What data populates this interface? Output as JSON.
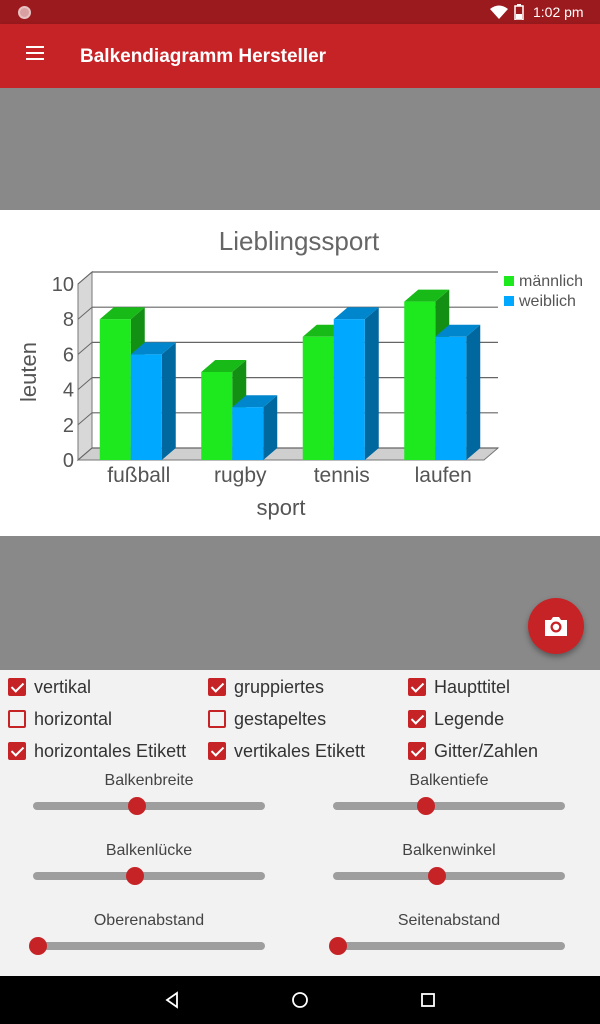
{
  "status_bar": {
    "time": "1:02 pm",
    "icons": [
      "notification-dot-icon",
      "wifi-icon",
      "battery-icon"
    ]
  },
  "app_bar": {
    "title": "Balkendiagramm Hersteller",
    "menu_icon": "hamburger-menu-icon"
  },
  "colors": {
    "primary": "#c62327",
    "status": "#9b1a1d",
    "male": "#1ee81e",
    "female": "#00a8ff",
    "gray_bg": "#898989"
  },
  "chart_data": {
    "type": "bar",
    "title": "Lieblingssport",
    "xlabel": "sport",
    "ylabel": "leuten",
    "categories": [
      "fußball",
      "rugby",
      "tennis",
      "laufen"
    ],
    "series": [
      {
        "name": "männlich",
        "values": [
          8,
          5,
          7,
          9
        ]
      },
      {
        "name": "weiblich",
        "values": [
          6,
          3,
          8,
          7
        ]
      }
    ],
    "ylim": [
      0,
      10
    ],
    "yticks": [
      "0",
      "2",
      "4",
      "6",
      "8",
      "10"
    ],
    "grid": true,
    "legend": "top-right",
    "style": "3d"
  },
  "checkboxes": [
    {
      "label": "vertikal",
      "checked": true
    },
    {
      "label": "gruppiertes",
      "checked": true
    },
    {
      "label": "Haupttitel",
      "checked": true
    },
    {
      "label": "horizontal",
      "checked": false
    },
    {
      "label": "gestapeltes",
      "checked": false
    },
    {
      "label": "Legende",
      "checked": true
    },
    {
      "label": "horizontales Etikett",
      "checked": true
    },
    {
      "label": "vertikales Etikett",
      "checked": true
    },
    {
      "label": "Gitter/Zahlen",
      "checked": true
    }
  ],
  "sliders": [
    {
      "label": "Balkenbreite",
      "value": 0.45
    },
    {
      "label": "Balkentiefe",
      "value": 0.4
    },
    {
      "label": "Balkenlücke",
      "value": 0.44
    },
    {
      "label": "Balkenwinkel",
      "value": 0.45
    },
    {
      "label": "Oberenabstand",
      "value": 0.02
    },
    {
      "label": "Seitenabstand",
      "value": 0.02
    }
  ],
  "fab": {
    "icon": "camera-icon"
  },
  "nav": {
    "icons": [
      "back-icon",
      "home-icon",
      "recents-icon"
    ]
  }
}
